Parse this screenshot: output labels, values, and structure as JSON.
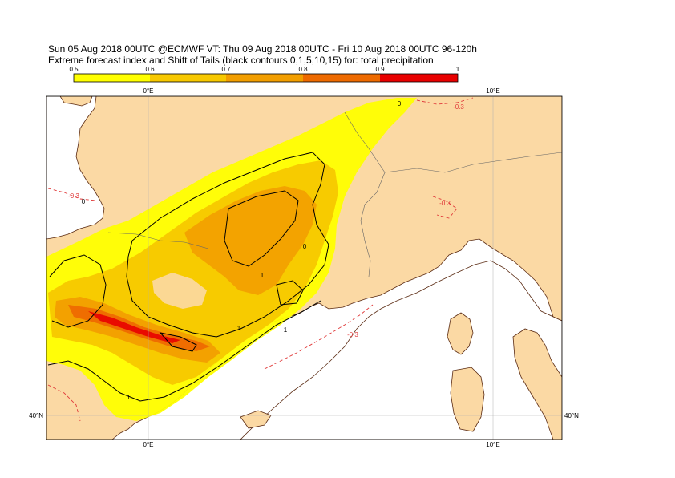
{
  "header": {
    "line1": "Sun 05 Aug 2018 00UTC @ECMWF VT: Thu 09 Aug 2018 00UTC - Fri 10 Aug 2018 00UTC  96-120h",
    "line2": "Extreme forecast index and Shift of Tails (black contours 0,1,5,10,15) for: total precipitation"
  },
  "colorbar": {
    "ticks": [
      "0.5",
      "0.6",
      "0.7",
      "0.8",
      "0.9",
      "1"
    ],
    "colors": [
      "#ffff00",
      "#f7c800",
      "#f29e00",
      "#ee6a00",
      "#e80000"
    ]
  },
  "map": {
    "lon_labels": [
      "0°E",
      "10°E"
    ],
    "lat_labels": [
      "40°N",
      "40°N"
    ],
    "contour_labels": [
      "0",
      "0",
      "0",
      "0",
      "1",
      "1",
      "1"
    ],
    "neg_contour_labels": [
      "-0.3",
      "-0.3",
      "-0.3",
      "-0.3"
    ],
    "colors": {
      "land": "#fbd9a4",
      "sea": "#ffffff",
      "coast": "#5a2a12",
      "neg_contour": "#e03a3a"
    }
  }
}
